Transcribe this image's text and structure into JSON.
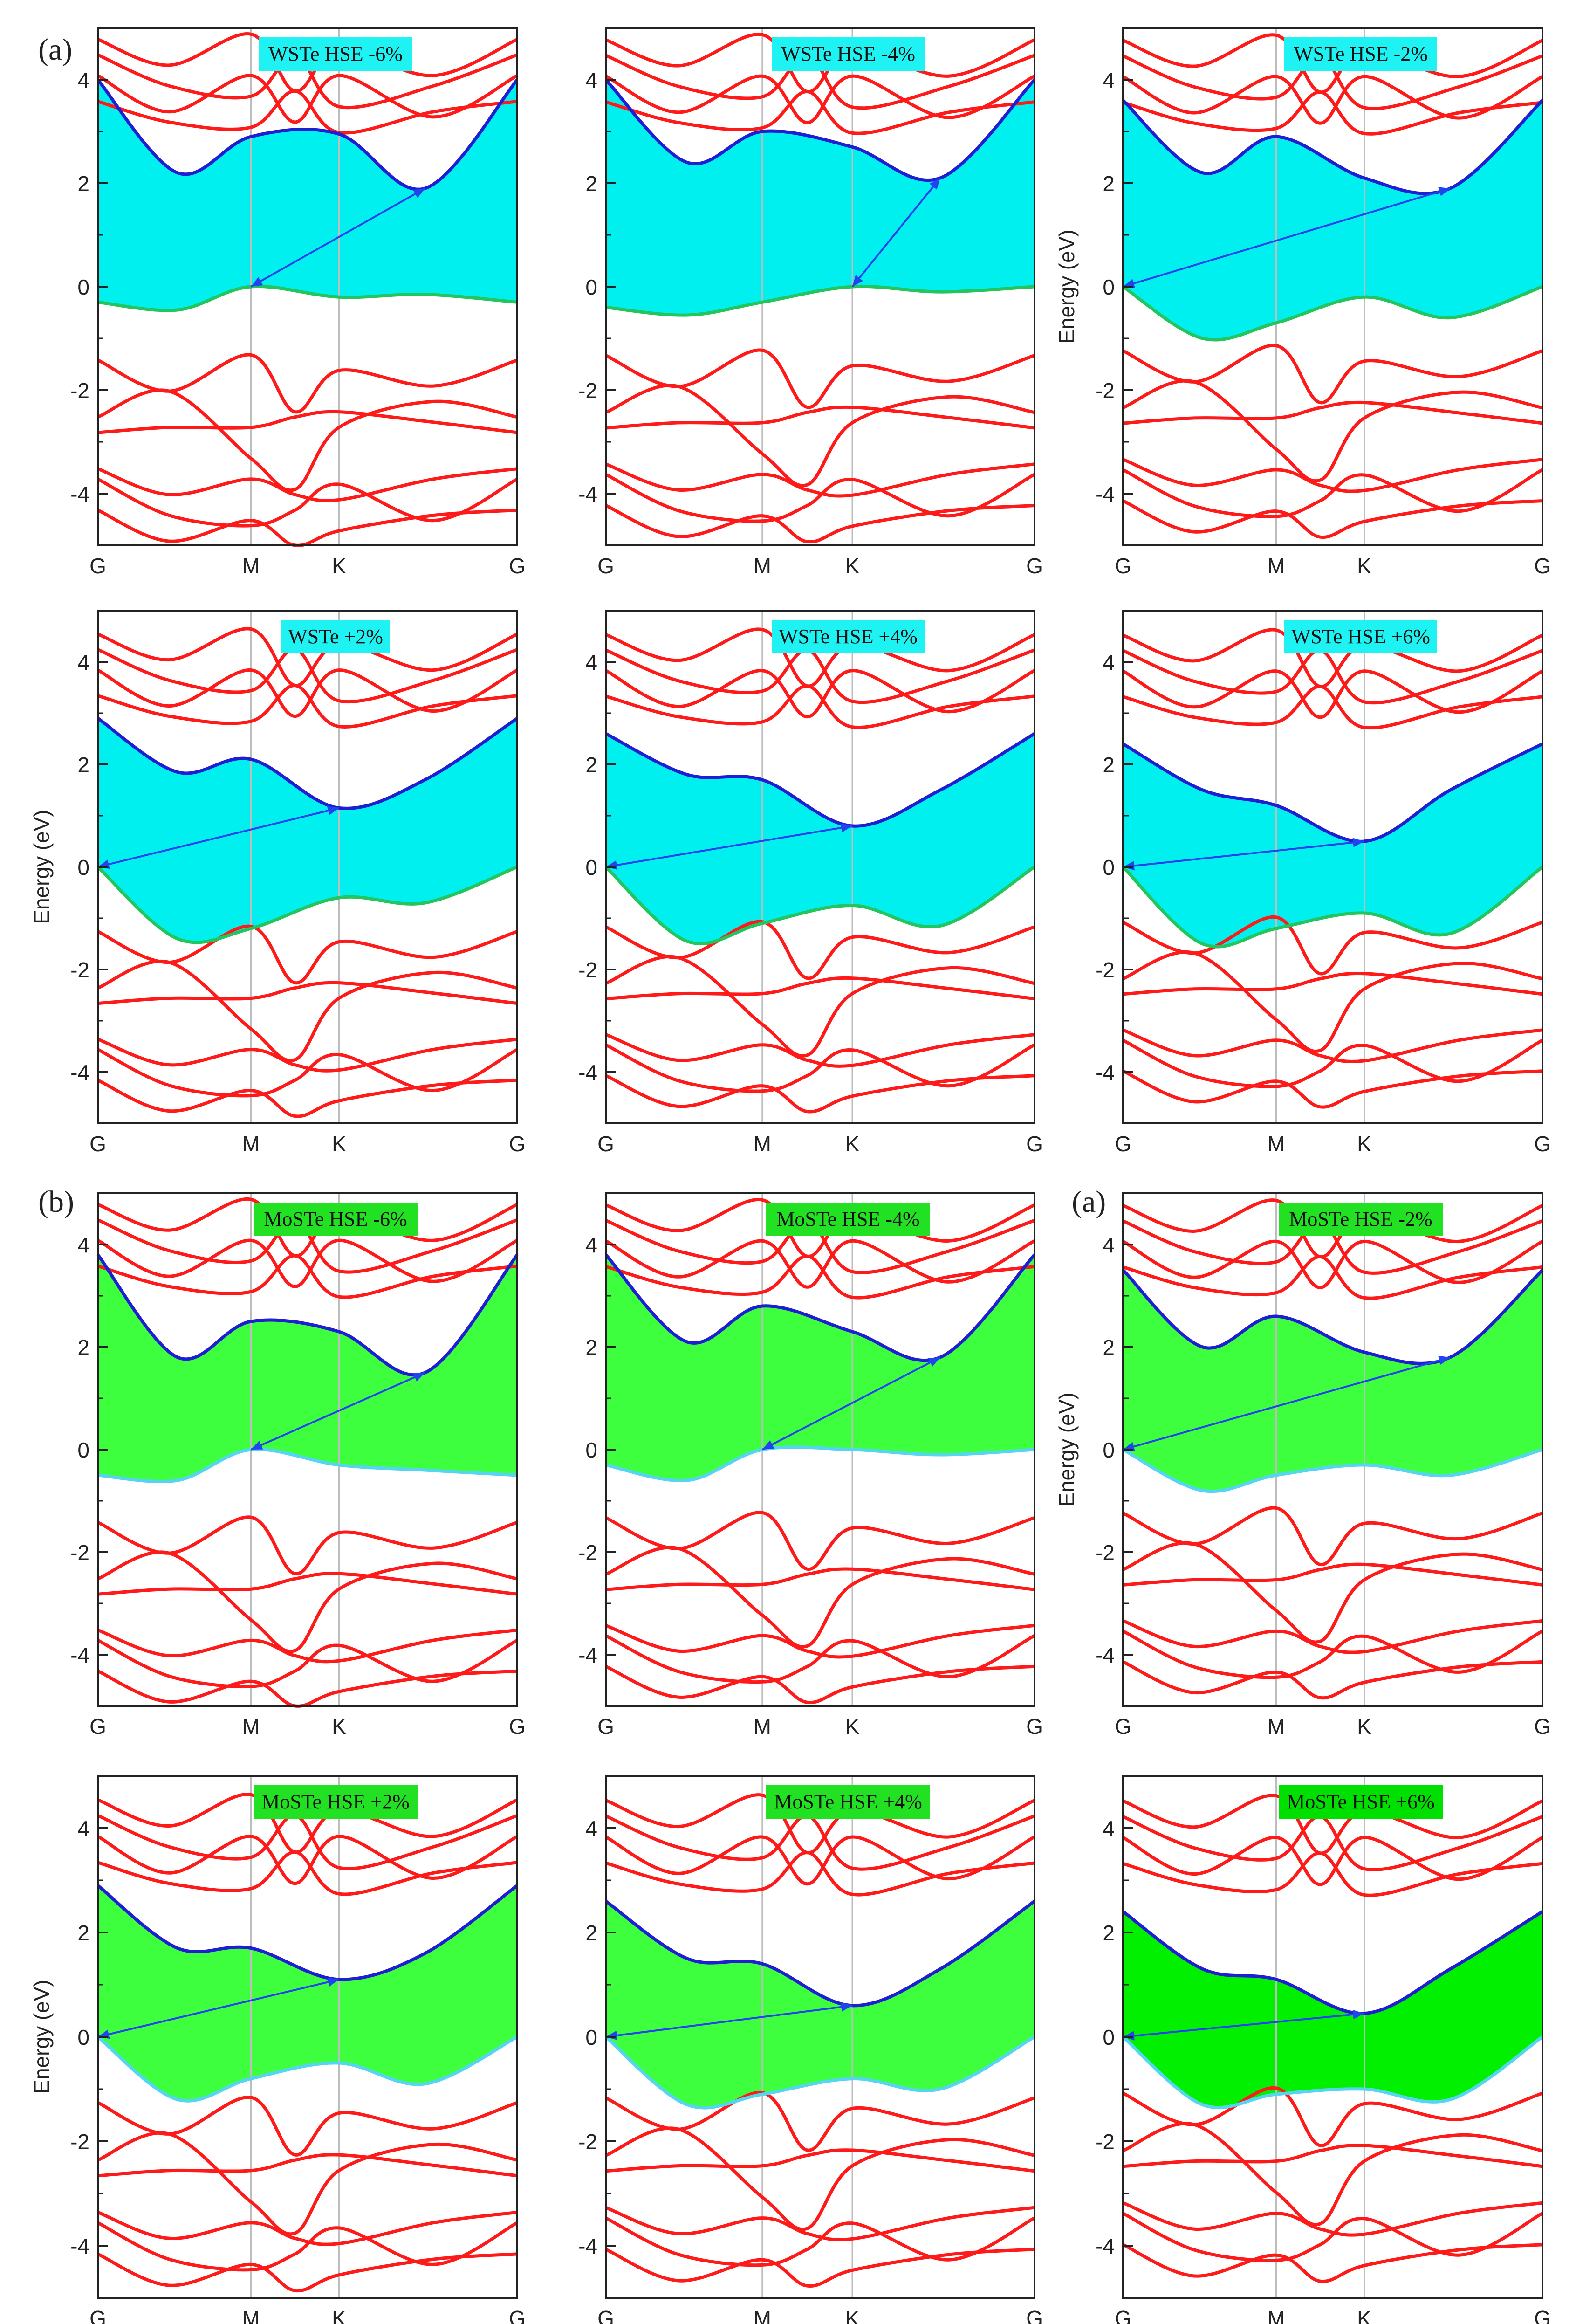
{
  "figure": {
    "panel_labels": [
      "(a)",
      "(b)",
      "(a)"
    ],
    "sub_labels": [
      "a",
      "b"
    ],
    "energy_label": "Energy (eV)",
    "kpoints": [
      "G",
      "M",
      "K",
      "G"
    ],
    "yticks": [
      "4",
      "2",
      "0",
      "-2",
      "-4"
    ]
  },
  "colors": {
    "band": "#ff1a1a",
    "vbm_edge": "#22c55e",
    "cbm_edge": "#1e1ed2",
    "fill_wste": "#00f0f0",
    "fill_moste": "#3dff3d",
    "fill_moste_dark": "#00f000",
    "arrow": "#2244ee",
    "grid": "#bdbdbd",
    "axis": "#222222"
  },
  "chart_data": [
    {
      "type": "line",
      "material": "WSTe",
      "title": "WSTe HSE -6%",
      "strain": -6,
      "xlabel": "",
      "ylabel": "",
      "ylim": [
        -5,
        5
      ],
      "kpoints": [
        "G",
        "M",
        "K",
        "G"
      ],
      "series": [
        {
          "name": "CBM edge",
          "values": [
            4.0,
            2.2,
            2.9,
            2.95,
            1.9,
            4.0
          ]
        },
        {
          "name": "VBM edge",
          "values": [
            -0.3,
            -0.45,
            0.0,
            -0.2,
            -0.15,
            -0.3
          ]
        }
      ],
      "gap_arrow": {
        "from": "M",
        "to": "K-G 45%",
        "fill": "cyan"
      }
    },
    {
      "type": "line",
      "material": "WSTe",
      "title": "WSTe HSE -4%",
      "strain": -4,
      "xlabel": "",
      "ylabel": "",
      "ylim": [
        -5,
        5
      ],
      "kpoints": [
        "G",
        "M",
        "K",
        "G"
      ],
      "series": [
        {
          "name": "CBM edge",
          "values": [
            4.0,
            2.4,
            3.0,
            2.7,
            2.1,
            4.0
          ]
        },
        {
          "name": "VBM edge",
          "values": [
            -0.4,
            -0.55,
            -0.3,
            0.0,
            -0.1,
            0.0
          ]
        }
      ]
    },
    {
      "type": "line",
      "material": "WSTe",
      "title": "WSTe HSE -2%",
      "strain": -2,
      "xlabel": "",
      "ylabel": "Energy (eV)",
      "ylim": [
        -5,
        5
      ],
      "kpoints": [
        "G",
        "M",
        "K",
        "G"
      ],
      "series": [
        {
          "name": "CBM edge",
          "values": [
            3.6,
            2.2,
            2.9,
            2.1,
            1.9,
            3.6
          ]
        },
        {
          "name": "VBM edge",
          "values": [
            0.0,
            -1.0,
            -0.7,
            -0.2,
            -0.6,
            0.0
          ]
        }
      ]
    },
    {
      "type": "line",
      "material": "WSTe",
      "title": "WSTe +2%",
      "strain": 2,
      "xlabel": "",
      "ylabel": "Energy (eV)",
      "ylim": [
        -5,
        5
      ],
      "kpoints": [
        "G",
        "M",
        "K",
        "G"
      ],
      "series": [
        {
          "name": "CBM edge",
          "values": [
            2.9,
            1.85,
            2.1,
            1.15,
            1.7,
            2.9
          ]
        },
        {
          "name": "VBM edge",
          "values": [
            0.0,
            -1.4,
            -1.2,
            -0.6,
            -0.7,
            0.0
          ]
        }
      ]
    },
    {
      "type": "line",
      "material": "WSTe",
      "title": "WSTe HSE +4%",
      "strain": 4,
      "xlabel": "",
      "ylabel": "",
      "ylim": [
        -5,
        5
      ],
      "kpoints": [
        "G",
        "M",
        "K",
        "G"
      ],
      "series": [
        {
          "name": "CBM edge",
          "values": [
            2.6,
            1.8,
            1.7,
            0.8,
            1.5,
            2.6
          ]
        },
        {
          "name": "VBM edge",
          "values": [
            0.0,
            -1.45,
            -1.1,
            -0.75,
            -1.15,
            0.0
          ]
        }
      ]
    },
    {
      "type": "line",
      "material": "WSTe",
      "title": "WSTe HSE +6%",
      "strain": 6,
      "xlabel": "",
      "ylabel": "",
      "ylim": [
        -5,
        5
      ],
      "kpoints": [
        "G",
        "M",
        "K",
        "G"
      ],
      "series": [
        {
          "name": "CBM edge",
          "values": [
            2.4,
            1.5,
            1.2,
            0.5,
            1.5,
            2.4
          ]
        },
        {
          "name": "VBM edge",
          "values": [
            0.0,
            -1.5,
            -1.2,
            -0.9,
            -1.3,
            0.0
          ]
        }
      ]
    },
    {
      "type": "line",
      "material": "MoSTe",
      "title": "MoSTe HSE -6%",
      "strain": -6,
      "xlabel": "",
      "ylabel": "",
      "ylim": [
        -5,
        5
      ],
      "kpoints": [
        "G",
        "M",
        "K",
        "G"
      ],
      "series": [
        {
          "name": "CBM edge",
          "values": [
            3.8,
            1.8,
            2.5,
            2.3,
            1.5,
            3.8
          ]
        },
        {
          "name": "VBM edge",
          "values": [
            -0.5,
            -0.6,
            0.0,
            -0.3,
            -0.4,
            -0.5
          ]
        }
      ]
    },
    {
      "type": "line",
      "material": "MoSTe",
      "title": "MoSTe HSE -4%",
      "strain": -4,
      "xlabel": "",
      "ylabel": "",
      "ylim": [
        -5,
        5
      ],
      "kpoints": [
        "G",
        "M",
        "K",
        "G"
      ],
      "series": [
        {
          "name": "CBM edge",
          "values": [
            3.8,
            2.1,
            2.8,
            2.3,
            1.8,
            3.8
          ]
        },
        {
          "name": "VBM edge",
          "values": [
            -0.3,
            -0.6,
            0.0,
            0.0,
            -0.1,
            0.0
          ]
        }
      ]
    },
    {
      "type": "line",
      "material": "MoSTe",
      "title": "MoSTe HSE -2%",
      "strain": -2,
      "xlabel": "",
      "ylabel": "Energy (eV)",
      "ylim": [
        -5,
        5
      ],
      "kpoints": [
        "G",
        "M",
        "K",
        "G"
      ],
      "series": [
        {
          "name": "CBM edge",
          "values": [
            3.5,
            2.0,
            2.6,
            1.9,
            1.8,
            3.5
          ]
        },
        {
          "name": "VBM edge",
          "values": [
            0.0,
            -0.8,
            -0.5,
            -0.3,
            -0.5,
            0.0
          ]
        }
      ]
    },
    {
      "type": "line",
      "material": "MoSTe",
      "title": "MoSTe HSE +2%",
      "strain": 2,
      "xlabel": "",
      "ylabel": "Energy (eV)",
      "ylim": [
        -5,
        5
      ],
      "kpoints": [
        "G",
        "M",
        "K",
        "G"
      ],
      "series": [
        {
          "name": "CBM edge",
          "values": [
            2.9,
            1.7,
            1.7,
            1.1,
            1.6,
            2.9
          ]
        },
        {
          "name": "VBM edge",
          "values": [
            0.0,
            -1.2,
            -0.8,
            -0.5,
            -0.9,
            0.0
          ]
        }
      ]
    },
    {
      "type": "line",
      "material": "MoSTe",
      "title": "MoSTe HSE +4%",
      "strain": 4,
      "xlabel": "",
      "ylabel": "",
      "ylim": [
        -5,
        5
      ],
      "kpoints": [
        "G",
        "M",
        "K",
        "G"
      ],
      "series": [
        {
          "name": "CBM edge",
          "values": [
            2.6,
            1.5,
            1.4,
            0.6,
            1.3,
            2.6
          ]
        },
        {
          "name": "VBM edge",
          "values": [
            0.0,
            -1.3,
            -1.1,
            -0.8,
            -1.0,
            0.0
          ]
        }
      ]
    },
    {
      "type": "line",
      "material": "MoSTe",
      "title": "MoSTe HSE +6%",
      "strain": 6,
      "xlabel": "",
      "ylabel": "",
      "ylim": [
        -5,
        5
      ],
      "kpoints": [
        "G",
        "M",
        "K",
        "G"
      ],
      "series": [
        {
          "name": "CBM edge",
          "values": [
            2.4,
            1.3,
            1.1,
            0.45,
            1.3,
            2.4
          ]
        },
        {
          "name": "VBM edge",
          "values": [
            0.0,
            -1.3,
            -1.1,
            -1.0,
            -1.2,
            0.0
          ]
        }
      ]
    }
  ]
}
